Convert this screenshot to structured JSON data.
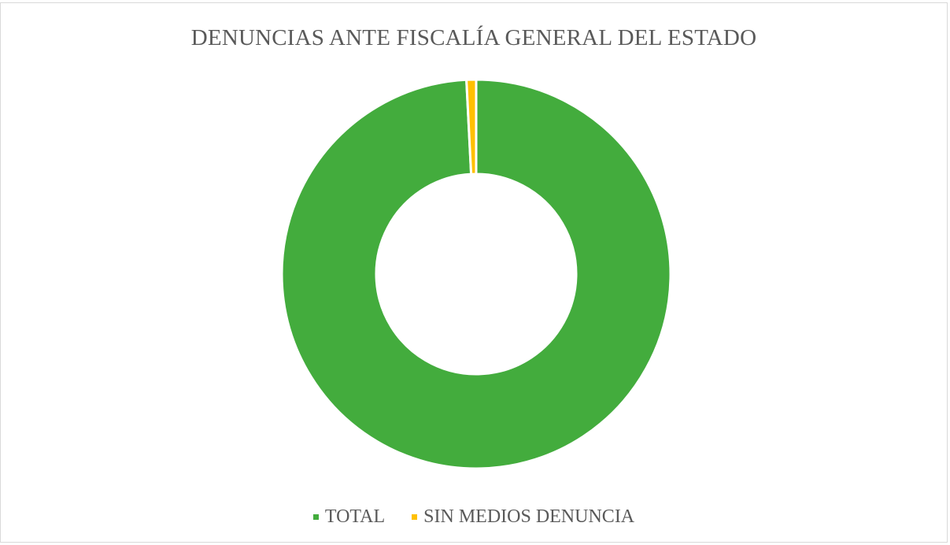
{
  "chart_data": {
    "type": "pie",
    "variant": "donut",
    "title": "DENUNCIAS ANTE FISCALÍA GENERAL DEL ESTADO",
    "categories": [
      "TOTAL",
      "SIN MEDIOS DENUNCIA"
    ],
    "values": [
      99.2,
      0.8
    ],
    "colors": [
      "#43AC3D",
      "#FFC000"
    ],
    "legend_position": "bottom",
    "grid": false
  },
  "legend": {
    "items": [
      {
        "label": "TOTAL",
        "color": "#43AC3D"
      },
      {
        "label": "SIN MEDIOS DENUNCIA",
        "color": "#FFC000"
      }
    ]
  }
}
